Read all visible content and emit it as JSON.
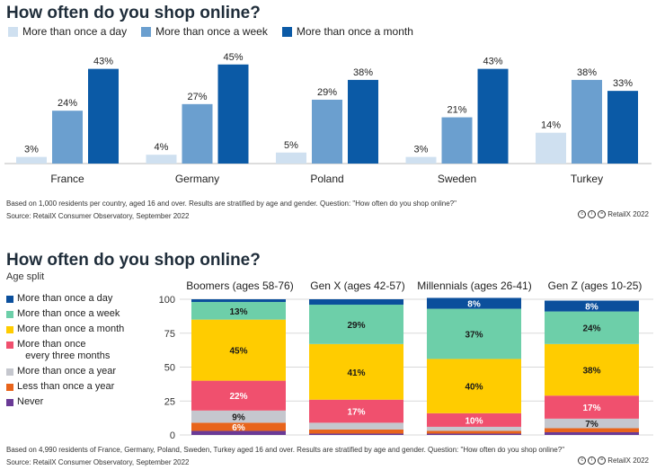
{
  "top": {
    "title": "How often do you shop online?",
    "note": "Based on 1,000 residents per country, aged 16 and over. Results are stratified by age and gender. Question: \"How often do you shop online?\"",
    "source": "Source: RetailX Consumer Observatory, September 2022",
    "license": "RetailX 2022"
  },
  "bottom": {
    "title": "How often do you shop online?",
    "subtitle": "Age split",
    "note": "Based on 4,990 residents of France, Germany, Poland, Sweden, Turkey aged 16 and over. Results are stratified by age and gender. Question: \"How often do you shop online?\"",
    "source": "Source: RetailX Consumer Observatory, September 2022",
    "license": "RetailX 2022"
  },
  "chart_data": [
    {
      "type": "bar",
      "title": "How often do you shop online?",
      "categories": [
        "France",
        "Germany",
        "Poland",
        "Sweden",
        "Turkey"
      ],
      "series": [
        {
          "name": "More than once a day",
          "color": "#cfe0f0",
          "values": [
            3,
            4,
            5,
            3,
            14
          ]
        },
        {
          "name": "More than once a week",
          "color": "#6b9fcf",
          "values": [
            24,
            27,
            29,
            21,
            38
          ]
        },
        {
          "name": "More than once a month",
          "color": "#0b5aa6",
          "values": [
            43,
            45,
            38,
            43,
            33
          ]
        }
      ],
      "value_suffix": "%",
      "legend": "top-left",
      "grid": false
    },
    {
      "type": "bar",
      "stacked": true,
      "title": "How often do you shop online?",
      "subtitle": "Age split",
      "categories": [
        "Boomers (ages 58-76)",
        "Gen X (ages 42-57)",
        "Millennials (ages 26-41)",
        "Gen Z (ages 10-25)"
      ],
      "series": [
        {
          "name": "Never",
          "color": "#6a3a96",
          "values": [
            3,
            1,
            1,
            2
          ]
        },
        {
          "name": "Less than once a year",
          "color": "#e8641b",
          "values": [
            6,
            3,
            2,
            3
          ]
        },
        {
          "name": "More than once a year",
          "color": "#c5c7ce",
          "values": [
            9,
            5,
            3,
            7
          ]
        },
        {
          "name": "More than once every three months",
          "color": "#f0506e",
          "values": [
            22,
            17,
            10,
            17
          ]
        },
        {
          "name": "More than once a month",
          "color": "#ffcc00",
          "values": [
            45,
            41,
            40,
            38
          ]
        },
        {
          "name": "More than once a week",
          "color": "#6dcfa9",
          "values": [
            13,
            29,
            37,
            24
          ]
        },
        {
          "name": "More than once a day",
          "color": "#0b4f9c",
          "values": [
            2,
            4,
            8,
            8
          ]
        }
      ],
      "labels": [
        [
          null,
          "6%",
          "9%",
          "22%",
          "45%",
          "13%",
          null
        ],
        [
          null,
          null,
          null,
          "17%",
          "41%",
          "29%",
          null
        ],
        [
          null,
          null,
          null,
          "10%",
          "40%",
          "37%",
          "8%"
        ],
        [
          null,
          null,
          "7%",
          "17%",
          "38%",
          "24%",
          "8%"
        ]
      ],
      "legend_order": [
        "More than once a day",
        "More than once a week",
        "More than once a month",
        "More than once every three months",
        "More than once a year",
        "Less than once a year",
        "Never"
      ],
      "yticks": [
        0,
        25,
        50,
        75,
        100
      ],
      "ylim": [
        0,
        100
      ],
      "legend": "left",
      "grid": true
    }
  ]
}
